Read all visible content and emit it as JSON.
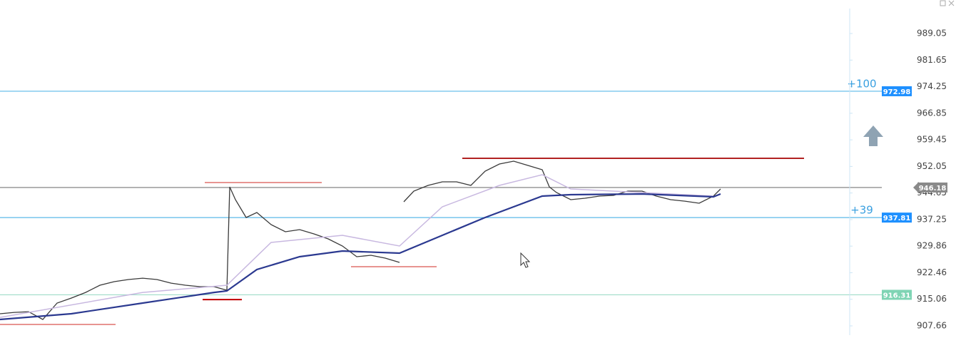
{
  "chart_data": {
    "type": "line",
    "ylim": [
      905.08,
      998.38
    ],
    "xlim": [
      0,
      1190
    ],
    "yticks": [
      989.05,
      981.65,
      974.25,
      966.85,
      959.45,
      952.05,
      944.65,
      937.25,
      929.86,
      922.46,
      915.06,
      907.66
    ],
    "series": [
      {
        "color": "#3a3a3a",
        "width": 1.3,
        "x": [
          0,
          20,
          40,
          60,
          80,
          100,
          120,
          140,
          160,
          180,
          200,
          220,
          240,
          260,
          280,
          300,
          318,
          322,
          330,
          345,
          360,
          380,
          400,
          420,
          440,
          460,
          480,
          500,
          520,
          540,
          560,
          563,
          566,
          580,
          600,
          620,
          640,
          660,
          680,
          700,
          720,
          740,
          760,
          770,
          780,
          800,
          820,
          840,
          860,
          880,
          900,
          920,
          940,
          960,
          980,
          1000,
          1010
        ],
        "values": [
          911.03,
          911.42,
          911.62,
          909.44,
          914.01,
          915.4,
          916.98,
          918.97,
          919.96,
          920.56,
          920.95,
          920.56,
          919.56,
          918.97,
          918.57,
          918.57,
          917.58,
          946.36,
          942.79,
          937.83,
          939.22,
          935.85,
          933.86,
          934.45,
          933.26,
          931.87,
          929.89,
          926.91,
          927.31,
          926.51,
          925.32,
          null,
          942.2,
          945.17,
          946.76,
          947.76,
          947.76,
          946.76,
          950.73,
          952.72,
          953.51,
          952.32,
          951.13,
          946.36,
          944.78,
          942.79,
          943.19,
          943.78,
          943.98,
          945.17,
          945.17,
          943.78,
          942.79,
          942.39,
          941.8,
          943.78,
          945.77
        ]
      },
      {
        "color": "#c8b8e0",
        "width": 1.5,
        "x": [
          0,
          200,
          318,
          380,
          480,
          560,
          620,
          700,
          760,
          800,
          1000
        ],
        "values": [
          910.03,
          916.98,
          918.97,
          930.88,
          932.87,
          929.89,
          940.81,
          946.76,
          949.74,
          945.77,
          943.78
        ]
      },
      {
        "color": "#2b3990",
        "width": 2.2,
        "x": [
          0,
          100,
          200,
          300,
          318,
          360,
          420,
          480,
          560,
          620,
          680,
          760,
          800,
          900,
          1000,
          1010
        ],
        "values": [
          909.44,
          911.03,
          914.01,
          916.98,
          917.38,
          923.34,
          926.91,
          928.5,
          927.9,
          932.87,
          937.83,
          943.78,
          944.18,
          944.38,
          943.59,
          944.38
        ]
      }
    ],
    "levels": [
      {
        "value": 947.56,
        "x": [
          287,
          451
        ],
        "color": "#d9534f",
        "width": 1.2
      },
      {
        "value": 954.3,
        "x": [
          648,
          1127
        ],
        "color": "#b22222",
        "width": 2
      },
      {
        "value": 924.14,
        "x": [
          492,
          612
        ],
        "color": "#d9534f",
        "width": 1.2
      },
      {
        "value": 914.98,
        "x": [
          284,
          339
        ],
        "color": "#c00000",
        "width": 2
      },
      {
        "value": 908.06,
        "x": [
          0,
          162
        ],
        "color": "#d9534f",
        "width": 1.2
      }
    ],
    "price_lines": [
      {
        "value": 972.98,
        "color": "#5bb8e8",
        "box": "#1e90ff",
        "offset": "+100"
      },
      {
        "value": 937.81,
        "color": "#5bb8e8",
        "box": "#1e90ff",
        "offset": "+39"
      },
      {
        "value": 916.31,
        "color": "#9fdcc8",
        "box": "#7fd4b4"
      },
      {
        "value": 946.18,
        "color": "#777777",
        "box": "#8a8a8a"
      }
    ]
  }
}
